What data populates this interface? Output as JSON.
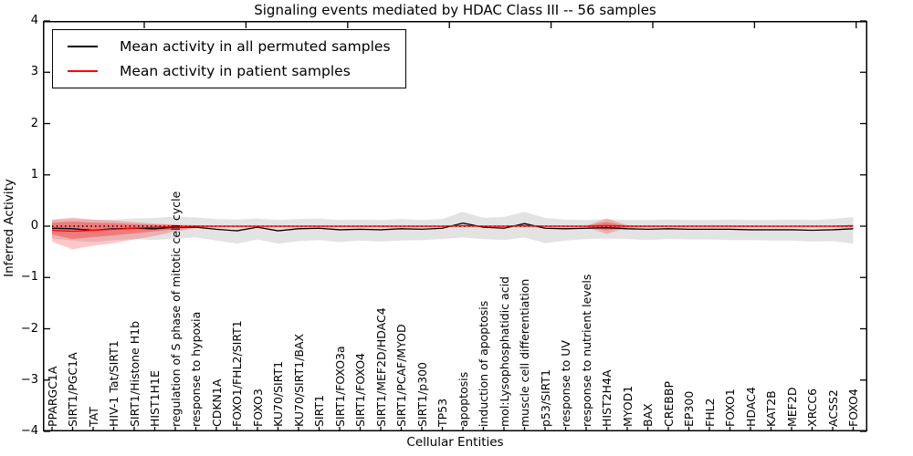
{
  "title": "Signaling events mediated by HDAC Class III -- 56 samples",
  "axes": {
    "x_label": "Cellular Entities",
    "y_label": "Inferred Activity",
    "y_tick_labels": [
      "4",
      "3",
      "2",
      "1",
      "0",
      "−1",
      "−2",
      "−3",
      "−4"
    ]
  },
  "legend": {
    "items": [
      {
        "label": "Mean activity in all permuted samples",
        "color": "#000000"
      },
      {
        "label": "Mean activity in patient samples",
        "color": "#ff0000"
      }
    ]
  },
  "chart_data": {
    "type": "line",
    "title": "Signaling events mediated by HDAC Class III -- 56 samples",
    "xlabel": "Cellular Entities",
    "ylabel": "Inferred Activity",
    "ylim": [
      -4,
      4
    ],
    "grid": false,
    "zero_line_style": "dotted",
    "legend_position": "upper left",
    "categories": [
      "PPARGC1A",
      "SIRT1/PGC1A",
      "TAT",
      "HIV-1 Tat/SIRT1",
      "SIRT1/Histone H1b",
      "HIST1H1E",
      "regulation of S phase of mitotic cell cycle",
      "response to hypoxia",
      "CDKN1A",
      "FOXO1/FHL2/SIRT1",
      "FOXO3",
      "KU70/SIRT1",
      "KU70/SIRT1/BAX",
      "SIRT1",
      "SIRT1/FOXO3a",
      "SIRT1/FOXO4",
      "SIRT1/MEF2D/HDAC4",
      "SIRT1/PCAF/MYOD",
      "SIRT1/p300",
      "TP53",
      "apoptosis",
      "induction of apoptosis",
      "mol:Lysophosphatidic acid",
      "muscle cell differentiation",
      "p53/SIRT1",
      "response to UV",
      "response to nutrient levels",
      "HIST2H4A",
      "MYOD1",
      "BAX",
      "CREBBP",
      "EP300",
      "FHL2",
      "FOXO1",
      "HDAC4",
      "KAT2B",
      "MEF2D",
      "XRCC6",
      "ACSS2",
      "FOXO4"
    ],
    "series": [
      {
        "name": "Mean activity in all permuted samples",
        "color": "#000000",
        "values": [
          -0.04,
          -0.05,
          -0.08,
          -0.05,
          -0.04,
          -0.05,
          -0.02,
          -0.02,
          -0.06,
          -0.09,
          -0.02,
          -0.09,
          -0.05,
          -0.04,
          -0.07,
          -0.06,
          -0.07,
          -0.05,
          -0.06,
          -0.04,
          0.06,
          -0.02,
          -0.04,
          0.05,
          -0.04,
          -0.05,
          -0.04,
          -0.03,
          -0.05,
          -0.06,
          -0.05,
          -0.06,
          -0.06,
          -0.06,
          -0.07,
          -0.07,
          -0.07,
          -0.08,
          -0.07,
          -0.05
        ]
      },
      {
        "name": "Mean activity in patient samples",
        "color": "#ff0000",
        "values": [
          -0.08,
          -0.1,
          -0.08,
          -0.06,
          -0.04,
          -0.02,
          -0.01,
          0,
          0,
          0,
          0,
          0,
          0,
          0,
          0,
          0,
          0,
          0,
          0,
          0,
          0.01,
          0,
          0,
          0.01,
          0,
          0,
          0,
          0.01,
          0,
          0,
          0,
          0,
          0,
          0,
          0,
          0,
          0,
          0,
          0,
          0.01
        ]
      }
    ],
    "bands": [
      {
        "name": "permuted-activity-range",
        "color": "#000000",
        "opacity": 0.11,
        "upper": [
          0.12,
          0.14,
          0.12,
          0.13,
          0.15,
          0.16,
          0.19,
          0.17,
          0.14,
          0.13,
          0.15,
          0.12,
          0.14,
          0.15,
          0.12,
          0.13,
          0.12,
          0.14,
          0.12,
          0.14,
          0.28,
          0.16,
          0.18,
          0.28,
          0.16,
          0.13,
          0.12,
          0.14,
          0.12,
          0.12,
          0.13,
          0.12,
          0.12,
          0.13,
          0.12,
          0.12,
          0.13,
          0.12,
          0.14,
          0.18
        ],
        "lower": [
          -0.24,
          -0.28,
          -0.31,
          -0.27,
          -0.25,
          -0.27,
          -0.24,
          -0.22,
          -0.28,
          -0.34,
          -0.26,
          -0.34,
          -0.29,
          -0.27,
          -0.31,
          -0.28,
          -0.3,
          -0.28,
          -0.27,
          -0.25,
          -0.22,
          -0.25,
          -0.27,
          -0.22,
          -0.33,
          -0.28,
          -0.25,
          -0.24,
          -0.25,
          -0.27,
          -0.25,
          -0.26,
          -0.26,
          -0.27,
          -0.27,
          -0.28,
          -0.28,
          -0.3,
          -0.29,
          -0.34
        ]
      },
      {
        "name": "patient-activity-range-outer",
        "color": "#ff0000",
        "opacity": 0.22,
        "upper": [
          0.13,
          0.17,
          0.13,
          0.11,
          0.08,
          0.05,
          0.03,
          0.02,
          0.01,
          0.01,
          0.01,
          0.01,
          0.01,
          0.01,
          0.01,
          0.01,
          0.01,
          0.01,
          0.01,
          0.01,
          0.01,
          0.01,
          0.01,
          0.01,
          0.01,
          0.01,
          0.01,
          0.15,
          0.02,
          0.01,
          0.01,
          0.01,
          0.01,
          0.01,
          0.01,
          0.01,
          0.01,
          0.01,
          0.01,
          0.02
        ],
        "lower": [
          -0.3,
          -0.45,
          -0.38,
          -0.33,
          -0.26,
          -0.19,
          -0.1,
          -0.04,
          -0.02,
          -0.02,
          -0.02,
          -0.02,
          -0.02,
          -0.02,
          -0.02,
          -0.02,
          -0.02,
          -0.02,
          -0.02,
          -0.02,
          -0.02,
          -0.02,
          -0.02,
          -0.02,
          -0.02,
          -0.02,
          -0.02,
          -0.15,
          -0.03,
          -0.02,
          -0.02,
          -0.02,
          -0.02,
          -0.02,
          -0.02,
          -0.02,
          -0.02,
          -0.02,
          -0.02,
          -0.03
        ]
      },
      {
        "name": "patient-activity-range-inner",
        "color": "#ff0000",
        "opacity": 0.3,
        "upper": [
          0.07,
          0.09,
          0.07,
          0.06,
          0.04,
          0.03,
          0.02,
          0.01,
          0.01,
          0.01,
          0.01,
          0.01,
          0.01,
          0.01,
          0.01,
          0.01,
          0.01,
          0.01,
          0.01,
          0.01,
          0.01,
          0.01,
          0.01,
          0.01,
          0.01,
          0.01,
          0.01,
          0.08,
          0.01,
          0.01,
          0.01,
          0.01,
          0.01,
          0.01,
          0.01,
          0.01,
          0.01,
          0.01,
          0.01,
          0.01
        ],
        "lower": [
          -0.16,
          -0.25,
          -0.21,
          -0.18,
          -0.14,
          -0.1,
          -0.06,
          -0.02,
          -0.01,
          -0.01,
          -0.01,
          -0.01,
          -0.01,
          -0.01,
          -0.01,
          -0.01,
          -0.01,
          -0.01,
          -0.01,
          -0.01,
          -0.01,
          -0.01,
          -0.01,
          -0.01,
          -0.01,
          -0.01,
          -0.01,
          -0.08,
          -0.02,
          -0.01,
          -0.01,
          -0.01,
          -0.01,
          -0.01,
          -0.01,
          -0.01,
          -0.01,
          -0.01,
          -0.01,
          -0.02
        ]
      }
    ]
  }
}
